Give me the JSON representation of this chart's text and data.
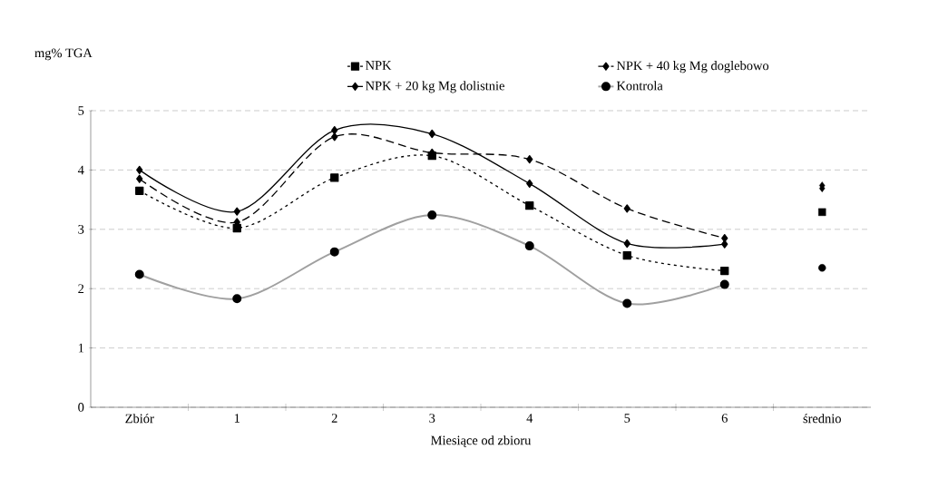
{
  "chart_data": {
    "type": "line",
    "xlabel": "Miesiące od zbioru",
    "ylabel": "mg% TGA",
    "categories": [
      "Zbiór",
      "1",
      "2",
      "3",
      "4",
      "5",
      "6",
      "średnio"
    ],
    "ylim": [
      0,
      5
    ],
    "yticks": [
      0,
      1,
      2,
      3,
      4,
      5
    ],
    "grid": "y",
    "legend": "top",
    "series": [
      {
        "name": "NPK",
        "color": "#000000",
        "marker": "square",
        "line_style": "dotted",
        "values": [
          3.65,
          3.02,
          3.87,
          4.24,
          3.4,
          2.56,
          2.3,
          null
        ]
      },
      {
        "name": "NPK + 40 kg Mg doglebowo",
        "color": "#000000",
        "marker": "diamond",
        "line_style": "dashed",
        "values": [
          3.85,
          3.12,
          4.56,
          4.29,
          4.18,
          3.35,
          2.85,
          null
        ]
      },
      {
        "name": "NPK + 20 kg Mg dolistnie",
        "color": "#000000",
        "marker": "diamond",
        "line_style": "solid",
        "values": [
          4.0,
          3.3,
          4.67,
          4.61,
          3.77,
          2.76,
          2.75,
          null
        ]
      },
      {
        "name": "Kontrola",
        "color": "#a0a0a0",
        "marker": "circle",
        "line_style": "solid",
        "values": [
          2.24,
          1.83,
          2.62,
          3.24,
          2.72,
          1.75,
          2.07,
          null
        ]
      },
      {
        "type": "scatter",
        "color": "#000000",
        "marker": "square",
        "values": [
          null,
          null,
          null,
          null,
          null,
          null,
          null,
          3.29
        ]
      },
      {
        "type": "scatter",
        "color": "#000000",
        "marker": "diamond",
        "values": [
          null,
          null,
          null,
          null,
          null,
          null,
          null,
          3.74
        ]
      },
      {
        "type": "scatter",
        "color": "#000000",
        "marker": "diamond",
        "values": [
          null,
          null,
          null,
          null,
          null,
          null,
          null,
          3.69
        ]
      },
      {
        "type": "scatter",
        "color": "#000000",
        "marker": "circle",
        "values": [
          null,
          null,
          null,
          null,
          null,
          null,
          null,
          2.35
        ]
      }
    ]
  }
}
